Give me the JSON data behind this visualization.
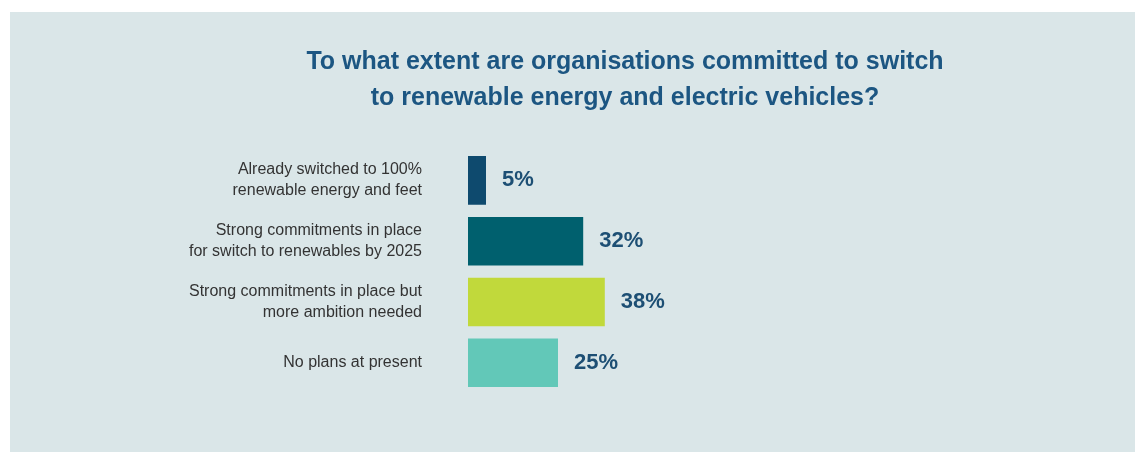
{
  "chart_data": {
    "type": "bar",
    "orientation": "horizontal",
    "title": "To what extent are organisations committed to switch\nto renewable energy and electric vehicles?",
    "categories": [
      "Already switched to 100%\nrenewable energy and feet",
      "Strong commitments in place\nfor switch to renewables by 2025",
      "Strong commitments in place but\nmore ambition needed",
      "No plans at present"
    ],
    "values": [
      5,
      32,
      38,
      25
    ],
    "colors": [
      "#0e4a6e",
      "#00606e",
      "#c1d93b",
      "#62c8b8"
    ],
    "value_labels": [
      "5%",
      "32%",
      "38%",
      "25%"
    ],
    "grid": false,
    "legend": false
  }
}
